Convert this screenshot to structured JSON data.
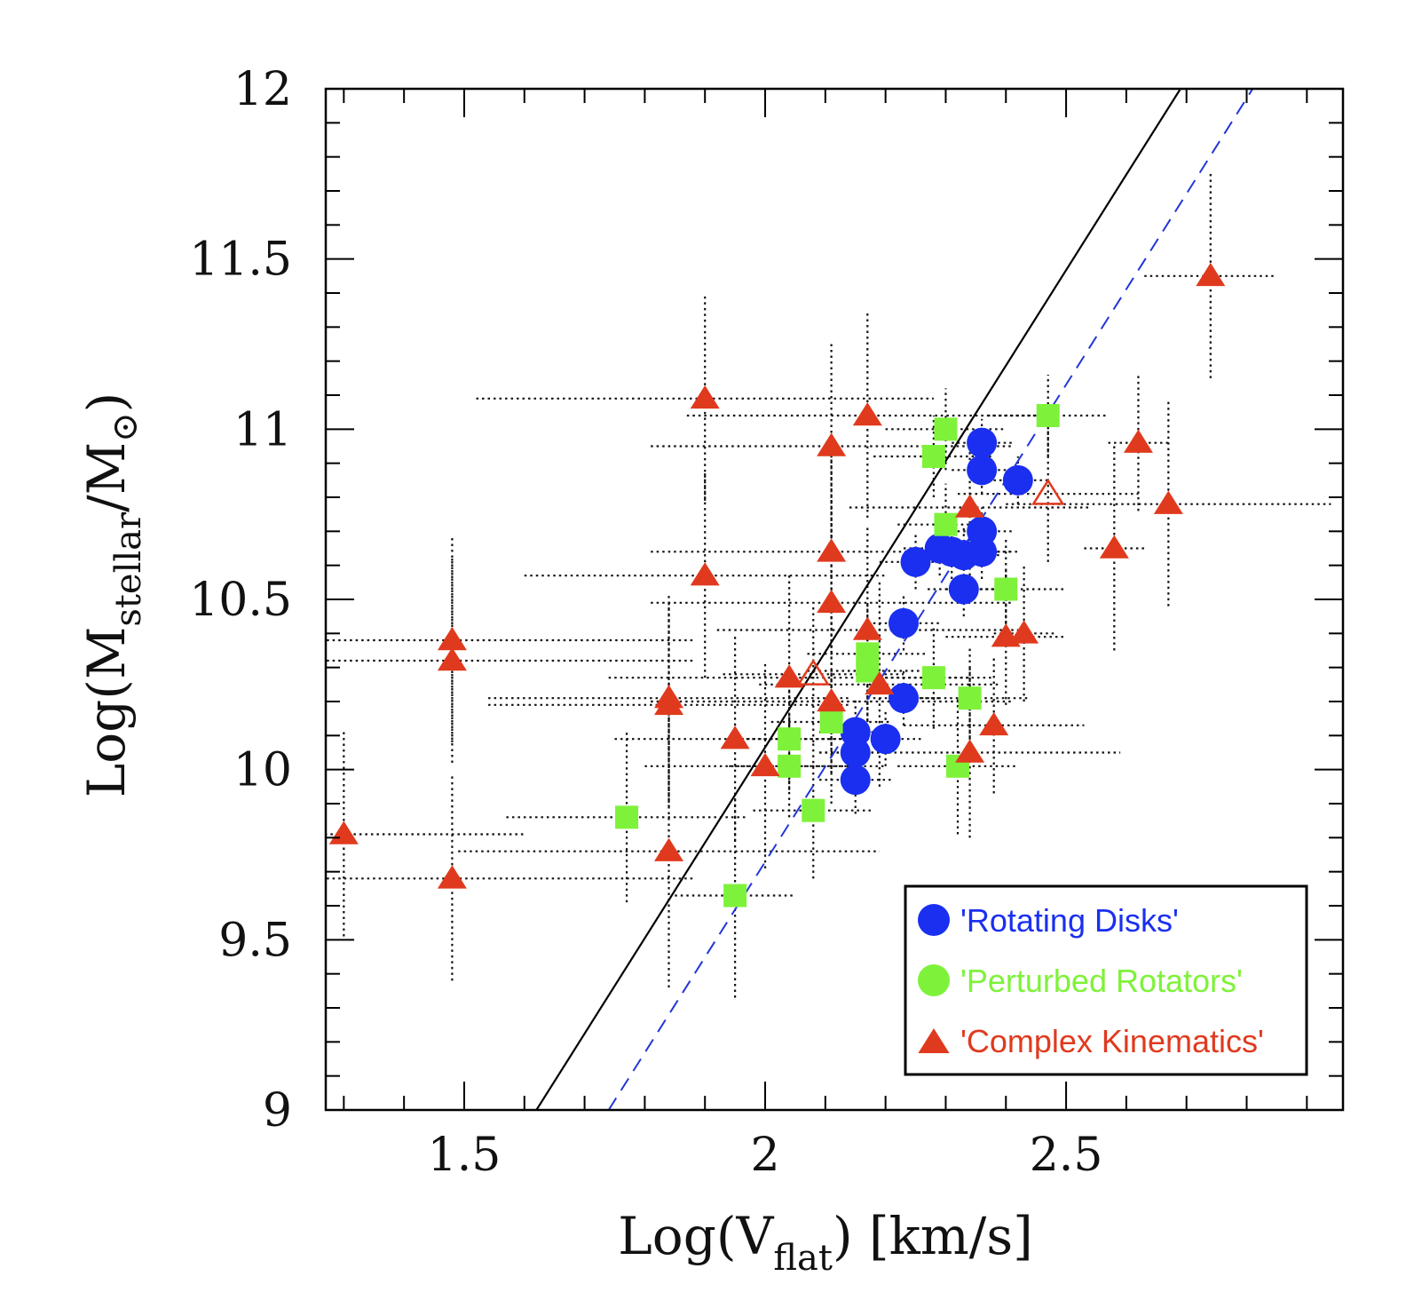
{
  "chart_data": {
    "type": "scatter",
    "title": "",
    "xlabel": {
      "main": "Log(V",
      "sub": "flat",
      "tail": ") [km/s]"
    },
    "ylabel": {
      "main": "Log(M",
      "sub": "stellar",
      "tail": "/M",
      "sun": "⊙",
      "close": ")"
    },
    "xlim": [
      1.27,
      2.96
    ],
    "ylim": [
      9.0,
      12.0
    ],
    "x_ticks": [
      "1.5",
      "2",
      "2.5"
    ],
    "x_tick_values": [
      1.5,
      2.0,
      2.5
    ],
    "y_ticks": [
      "9",
      "9.5",
      "10",
      "10.5",
      "11",
      "11.5",
      "12"
    ],
    "y_tick_values": [
      9.0,
      9.5,
      10.0,
      10.5,
      11.0,
      11.5,
      12.0
    ],
    "grid": false,
    "legend_position": "bottom-right",
    "colors": {
      "rotating": "#1a2ff0",
      "perturbed": "#7ef23a",
      "complex": "#e03a1e",
      "solid_line": "#000000",
      "dashed_line": "#2236d8",
      "errorbar": "#111111"
    },
    "lines": [
      {
        "style": "solid",
        "color": "#000000",
        "points": [
          [
            1.62,
            9.0
          ],
          [
            2.69,
            12.0
          ]
        ]
      },
      {
        "style": "dashed",
        "color": "#2236d8",
        "points": [
          [
            1.74,
            9.0
          ],
          [
            2.81,
            12.0
          ]
        ]
      }
    ],
    "series": [
      {
        "name": "'Rotating Disks'",
        "marker": "circle",
        "points": [
          [
            2.36,
            10.96,
            0.05,
            0.07
          ],
          [
            2.36,
            10.88,
            0.05,
            0.07
          ],
          [
            2.42,
            10.85,
            0.05,
            0.07
          ],
          [
            2.36,
            10.7,
            0.05,
            0.07
          ],
          [
            2.29,
            10.65,
            0.06,
            0.08
          ],
          [
            2.31,
            10.64,
            0.06,
            0.08
          ],
          [
            2.33,
            10.63,
            0.06,
            0.08
          ],
          [
            2.36,
            10.64,
            0.06,
            0.08
          ],
          [
            2.25,
            10.61,
            0.06,
            0.08
          ],
          [
            2.33,
            10.53,
            0.06,
            0.08
          ],
          [
            2.23,
            10.43,
            0.06,
            0.08
          ],
          [
            2.23,
            10.21,
            0.06,
            0.08
          ],
          [
            2.2,
            10.09,
            0.06,
            0.08
          ],
          [
            2.15,
            10.11,
            0.06,
            0.1
          ],
          [
            2.15,
            10.05,
            0.06,
            0.1
          ],
          [
            2.15,
            9.97,
            0.06,
            0.1
          ]
        ]
      },
      {
        "name": "'Perturbed Rotators'",
        "marker": "square",
        "points": [
          [
            2.47,
            11.04,
            0.1,
            0.12
          ],
          [
            2.3,
            11.0,
            0.1,
            0.12
          ],
          [
            2.28,
            10.92,
            0.1,
            0.12
          ],
          [
            2.3,
            10.72,
            0.08,
            0.12
          ],
          [
            2.4,
            10.53,
            0.1,
            0.15
          ],
          [
            2.17,
            10.34,
            0.1,
            0.15
          ],
          [
            2.17,
            10.29,
            0.1,
            0.15
          ],
          [
            2.28,
            10.27,
            0.1,
            0.15
          ],
          [
            2.34,
            10.21,
            0.1,
            0.15
          ],
          [
            2.11,
            10.14,
            0.1,
            0.15
          ],
          [
            2.04,
            10.09,
            0.1,
            0.15
          ],
          [
            2.04,
            10.01,
            0.1,
            0.15
          ],
          [
            2.32,
            10.01,
            0.1,
            0.2
          ],
          [
            2.08,
            9.88,
            0.1,
            0.2
          ],
          [
            1.77,
            9.86,
            0.2,
            0.25
          ],
          [
            1.95,
            9.63,
            0.1,
            0.3
          ]
        ]
      },
      {
        "name": "'Complex Kinematics'",
        "marker": "triangle",
        "points": [
          [
            2.74,
            11.45,
            0.11,
            0.3
          ],
          [
            2.62,
            10.96,
            0.05,
            0.2
          ],
          [
            2.67,
            10.78,
            0.27,
            0.3
          ],
          [
            2.58,
            10.65,
            0.05,
            0.3
          ],
          [
            2.43,
            10.4,
            0.05,
            0.2
          ],
          [
            2.4,
            10.39,
            0.1,
            0.2
          ],
          [
            2.38,
            10.13,
            0.15,
            0.2
          ],
          [
            2.34,
            10.05,
            0.25,
            0.25
          ],
          [
            2.34,
            10.77,
            0.2,
            0.2
          ],
          [
            2.17,
            11.04,
            0.3,
            0.3
          ],
          [
            1.9,
            11.09,
            0.38,
            0.3
          ],
          [
            2.11,
            10.95,
            0.3,
            0.3
          ],
          [
            2.11,
            10.64,
            0.3,
            0.3
          ],
          [
            1.9,
            10.57,
            0.3,
            0.3
          ],
          [
            2.11,
            10.49,
            0.3,
            0.3
          ],
          [
            2.17,
            10.41,
            0.25,
            0.3
          ],
          [
            2.04,
            10.27,
            0.3,
            0.3
          ],
          [
            2.11,
            10.2,
            0.3,
            0.3
          ],
          [
            2.19,
            10.25,
            0.2,
            0.3
          ],
          [
            1.84,
            10.21,
            0.3,
            0.3
          ],
          [
            1.84,
            10.19,
            0.3,
            0.3
          ],
          [
            1.95,
            10.09,
            0.2,
            0.3
          ],
          [
            2.0,
            10.01,
            0.2,
            0.3
          ],
          [
            1.48,
            10.38,
            0.4,
            0.3
          ],
          [
            1.48,
            10.32,
            0.4,
            0.3
          ],
          [
            1.84,
            9.76,
            0.35,
            0.4
          ],
          [
            1.48,
            9.68,
            0.4,
            0.3
          ],
          [
            1.3,
            9.81,
            0.3,
            0.3
          ]
        ]
      },
      {
        "name": "",
        "marker": "triangle-open",
        "points": [
          [
            2.47,
            10.81,
            0.15,
            0.2
          ],
          [
            2.08,
            10.28,
            0.15,
            0.2
          ]
        ]
      }
    ],
    "point_format": "[x, y, x_err, y_err]"
  },
  "legend": [
    {
      "label": "'Rotating Disks'",
      "marker": "circle",
      "color": "#1a2ff0"
    },
    {
      "label": "'Perturbed Rotators'",
      "marker": "circle",
      "color": "#7ef23a"
    },
    {
      "label": "'Complex Kinematics'",
      "marker": "triangle",
      "color": "#e03a1e"
    }
  ]
}
